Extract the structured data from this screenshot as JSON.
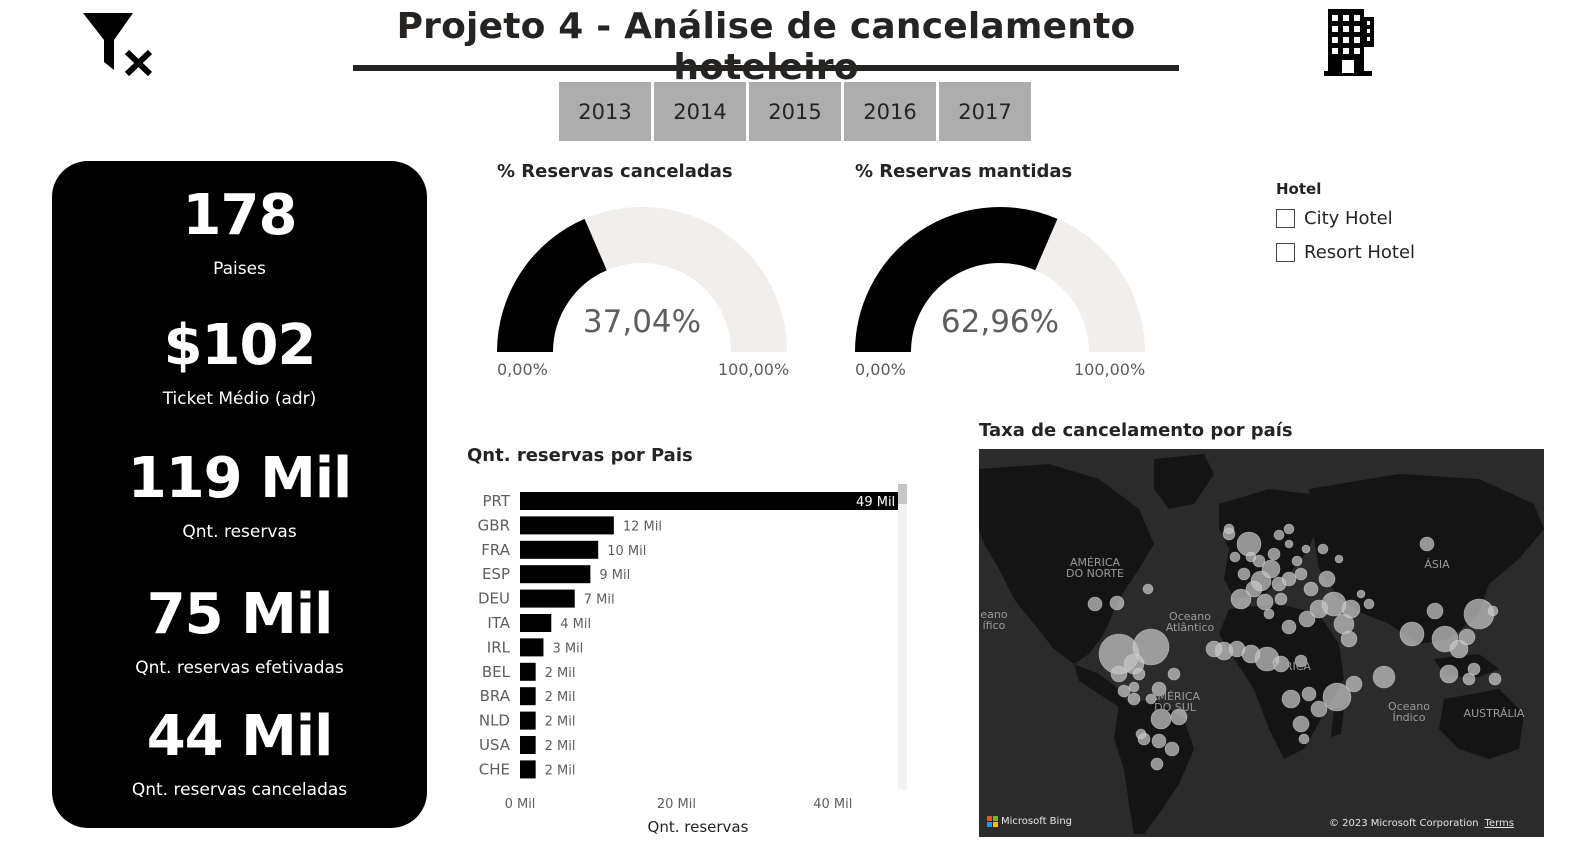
{
  "header": {
    "title": "Projeto 4 - Análise de cancelamento hoteleiro",
    "clear_filter_icon": "filter-clear-icon",
    "hotel_icon": "building-icon"
  },
  "year_slicer": {
    "years": [
      "2013",
      "2014",
      "2015",
      "2016",
      "2017"
    ]
  },
  "kpis": {
    "countries_value": "178",
    "countries_label": "Paises",
    "ticket_value": "$102",
    "ticket_label": "Ticket Médio (adr)",
    "bookings_value": "119 Mil",
    "bookings_label": "Qnt. reservas",
    "kept_value": "75 Mil",
    "kept_label": "Qnt. reservas efetivadas",
    "cancelled_value": "44 Mil",
    "cancelled_label": "Qnt. reservas canceladas"
  },
  "gauges": {
    "cancelled": {
      "title": "% Reservas canceladas",
      "value_label": "37,04%",
      "value": 37.04,
      "min_label": "0,00%",
      "max_label": "100,00%"
    },
    "kept": {
      "title": "% Reservas mantidas",
      "value_label": "62,96%",
      "value": 62.96,
      "min_label": "0,00%",
      "max_label": "100,00%"
    }
  },
  "hotel_slicer": {
    "title": "Hotel",
    "options": [
      "City Hotel",
      "Resort Hotel"
    ]
  },
  "chart_data": {
    "type": "bar",
    "orientation": "horizontal",
    "title": "Qnt. reservas por Pais",
    "xlabel": "Qnt. reservas",
    "ylabel": "",
    "categories": [
      "PRT",
      "GBR",
      "FRA",
      "ESP",
      "DEU",
      "ITA",
      "IRL",
      "BEL",
      "BRA",
      "NLD",
      "USA",
      "CHE"
    ],
    "values": [
      49,
      12,
      10,
      9,
      7,
      4,
      3,
      2,
      2,
      2,
      2,
      2
    ],
    "data_labels": [
      "49 Mil",
      "12 Mil",
      "10 Mil",
      "9 Mil",
      "7 Mil",
      "4 Mil",
      "3 Mil",
      "2 Mil",
      "2 Mil",
      "2 Mil",
      "2 Mil",
      "2 Mil"
    ],
    "x_ticks": [
      "0 Mil",
      "20 Mil",
      "40 Mil"
    ],
    "x_tick_values": [
      0,
      20,
      40
    ],
    "xlim": [
      0,
      50
    ],
    "bar_color": "#000000",
    "grid": false
  },
  "map": {
    "title": "Taxa de cancelamento por país",
    "labels": [
      "AMÉRICA DO NORTE",
      "Oceano Atlântico",
      "ÁSIA",
      "ÁFRICA",
      "AMÉRICA DO SUL",
      "Oceano Índico",
      "AUSTRÁLIA",
      "eano ífico"
    ],
    "bing": "Microsoft Bing",
    "copyright": "© 2023 Microsoft Corporation",
    "terms": "Terms",
    "background_color": "#2b2b2b",
    "land_color": "#141414",
    "bubble_color": "#c8c8c8"
  },
  "colors": {
    "dark": "#252423",
    "gauge_fill": "#000000",
    "gauge_track": "#f0efee",
    "slicer_bg": "#adadad"
  }
}
